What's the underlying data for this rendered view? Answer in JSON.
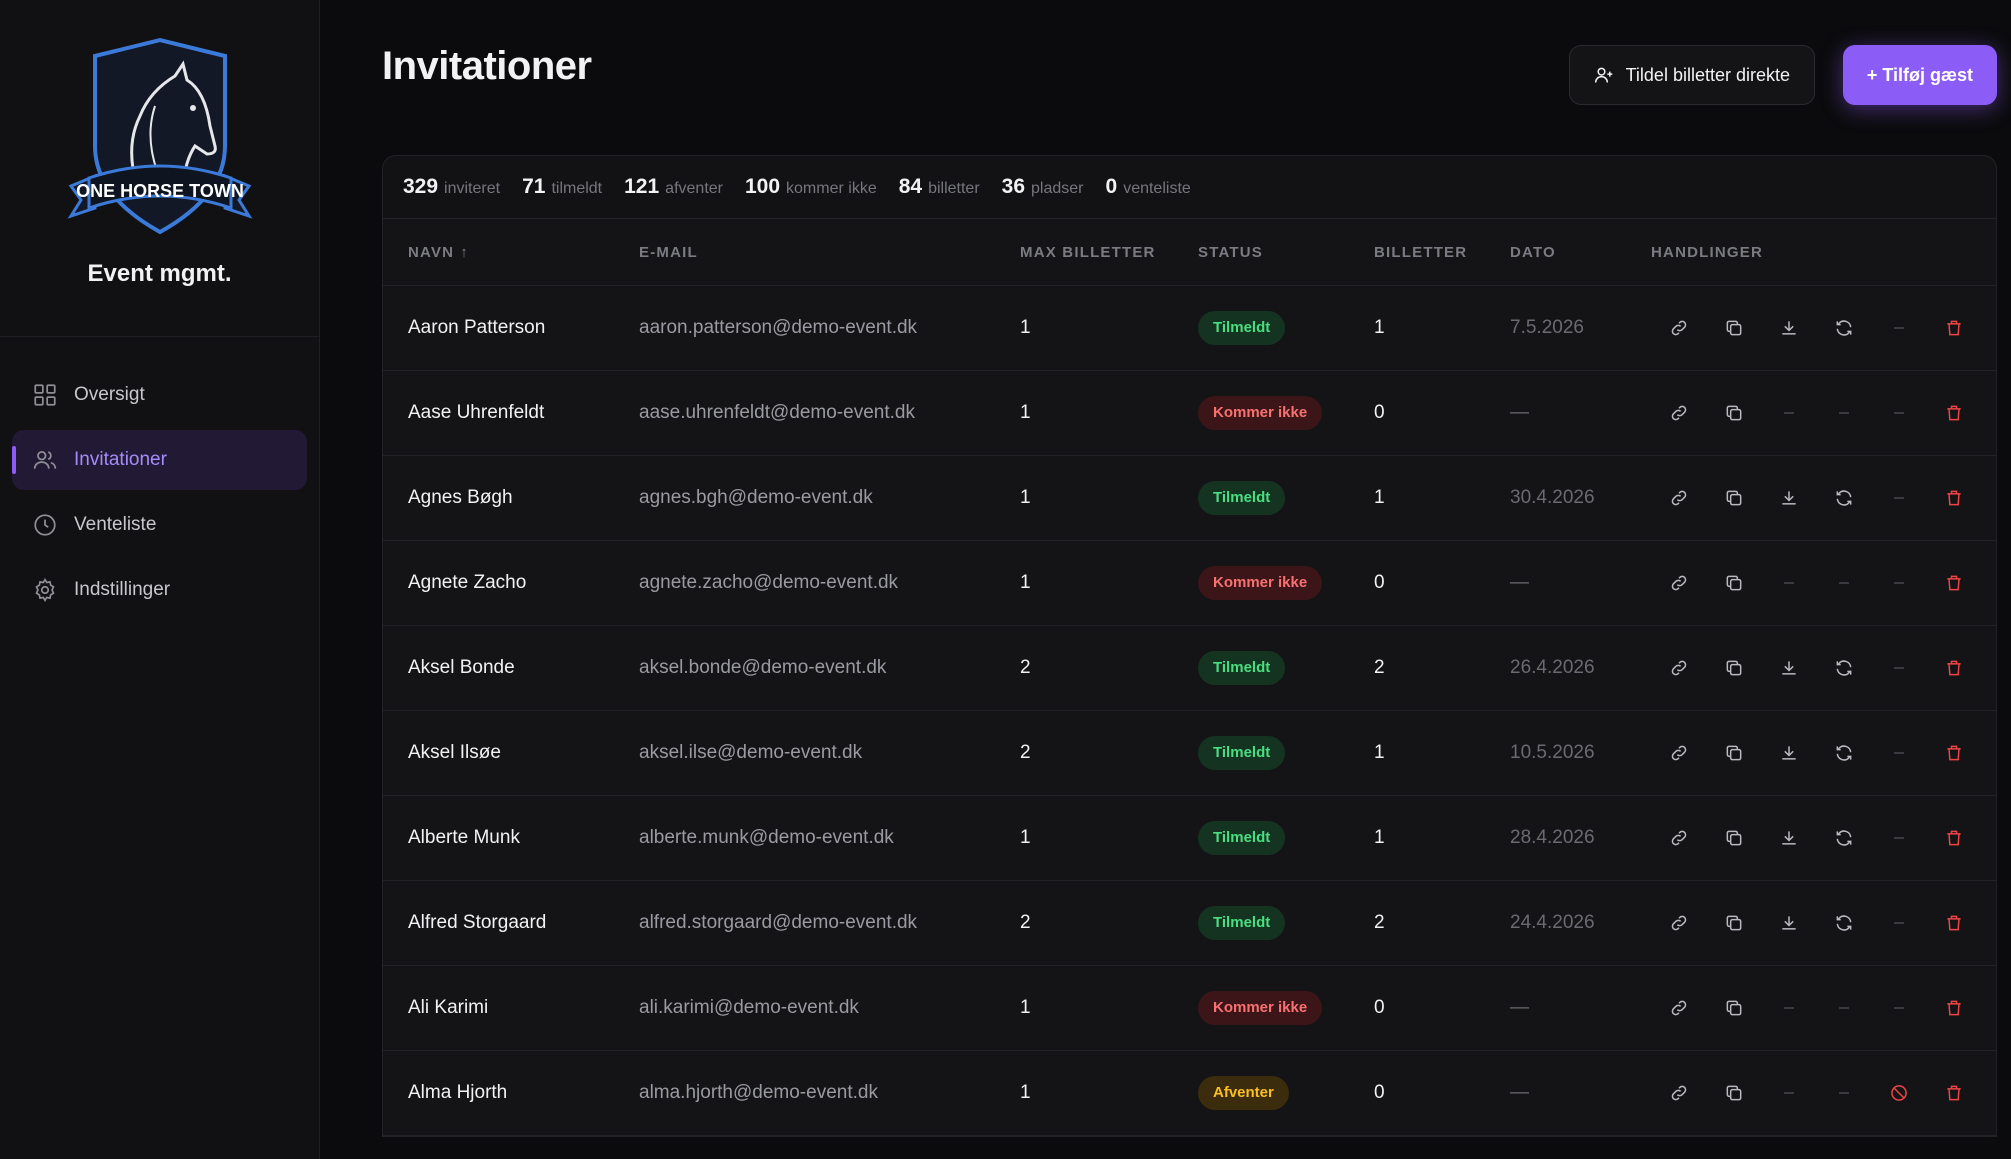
{
  "brand": {
    "logo_text": "ONE HORSE TOWN",
    "name": "Event mgmt."
  },
  "nav": [
    {
      "label": "Oversigt",
      "icon": "grid-icon",
      "active": false
    },
    {
      "label": "Invitationer",
      "icon": "users-icon",
      "active": true
    },
    {
      "label": "Venteliste",
      "icon": "clock-icon",
      "active": false
    },
    {
      "label": "Indstillinger",
      "icon": "gear-icon",
      "active": false
    }
  ],
  "header": {
    "title": "Invitationer",
    "assign_button": "Tildel billetter direkte",
    "add_button": "+ Tilføj gæst"
  },
  "stats": [
    {
      "value": "329",
      "label": "inviteret"
    },
    {
      "value": "71",
      "label": "tilmeldt"
    },
    {
      "value": "121",
      "label": "afventer"
    },
    {
      "value": "100",
      "label": "kommer ikke"
    },
    {
      "value": "84",
      "label": "billetter"
    },
    {
      "value": "36",
      "label": "pladser"
    },
    {
      "value": "0",
      "label": "venteliste"
    }
  ],
  "table": {
    "columns": {
      "name": "NAVN",
      "email": "E-MAIL",
      "max": "MAX BILLETTER",
      "status": "STATUS",
      "tickets": "BILLETTER",
      "date": "DATO",
      "actions": "HANDLINGER"
    },
    "sort_indicator": "↑",
    "rows": [
      {
        "name": "Aaron Patterson",
        "email": "aaron.patterson@demo-event.dk",
        "max": "1",
        "status": "Tilmeldt",
        "tickets": "1",
        "date": "7.5.2026"
      },
      {
        "name": "Aase Uhrenfeldt",
        "email": "aase.uhrenfeldt@demo-event.dk",
        "max": "1",
        "status": "Kommer ikke",
        "tickets": "0",
        "date": "—"
      },
      {
        "name": "Agnes Bøgh",
        "email": "agnes.bgh@demo-event.dk",
        "max": "1",
        "status": "Tilmeldt",
        "tickets": "1",
        "date": "30.4.2026"
      },
      {
        "name": "Agnete Zacho",
        "email": "agnete.zacho@demo-event.dk",
        "max": "1",
        "status": "Kommer ikke",
        "tickets": "0",
        "date": "—"
      },
      {
        "name": "Aksel Bonde",
        "email": "aksel.bonde@demo-event.dk",
        "max": "2",
        "status": "Tilmeldt",
        "tickets": "2",
        "date": "26.4.2026"
      },
      {
        "name": "Aksel Ilsøe",
        "email": "aksel.ilse@demo-event.dk",
        "max": "2",
        "status": "Tilmeldt",
        "tickets": "1",
        "date": "10.5.2026"
      },
      {
        "name": "Alberte Munk",
        "email": "alberte.munk@demo-event.dk",
        "max": "1",
        "status": "Tilmeldt",
        "tickets": "1",
        "date": "28.4.2026"
      },
      {
        "name": "Alfred Storgaard",
        "email": "alfred.storgaard@demo-event.dk",
        "max": "2",
        "status": "Tilmeldt",
        "tickets": "2",
        "date": "24.4.2026"
      },
      {
        "name": "Ali Karimi",
        "email": "ali.karimi@demo-event.dk",
        "max": "1",
        "status": "Kommer ikke",
        "tickets": "0",
        "date": "—"
      },
      {
        "name": "Alma Hjorth",
        "email": "alma.hjorth@demo-event.dk",
        "max": "1",
        "status": "Afventer",
        "tickets": "0",
        "date": "—"
      }
    ]
  },
  "colors": {
    "accent": "#8b5cf6",
    "tilmeldt": "#4ade80",
    "kommer_ikke": "#f87171",
    "afventer": "#fbbf24"
  }
}
